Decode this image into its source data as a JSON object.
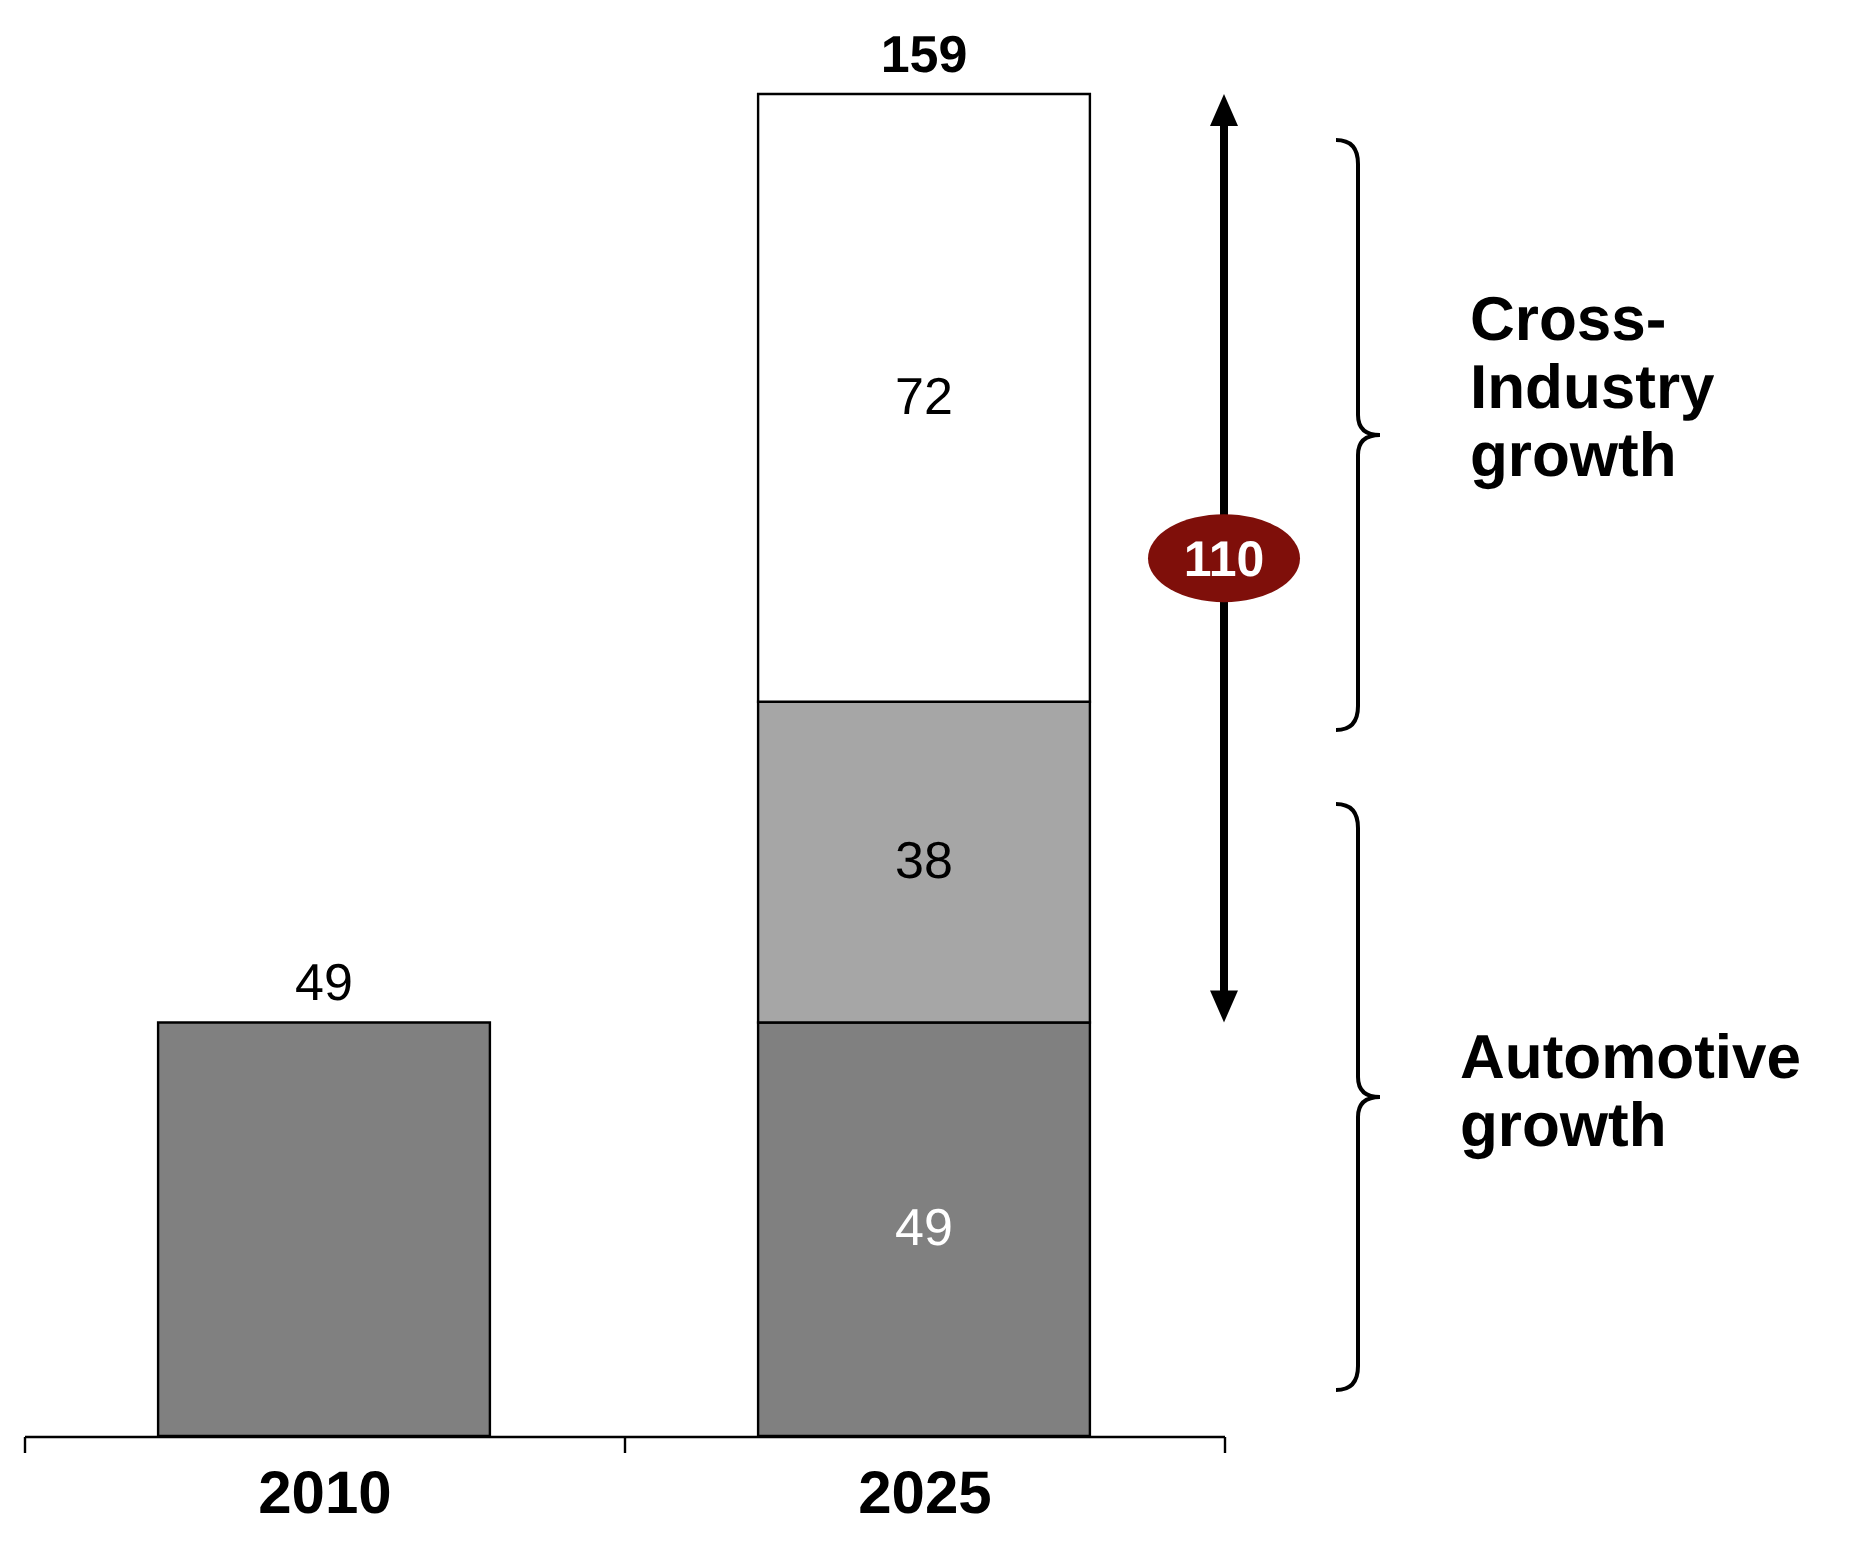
{
  "chart_data": {
    "type": "bar",
    "stacked": true,
    "categories": [
      "2010",
      "2025"
    ],
    "series": [
      {
        "color": "#808080",
        "values": [
          49,
          49
        ],
        "value_labels": [
          null,
          "49"
        ]
      },
      {
        "color": "#a6a6a6",
        "values": [
          null,
          38
        ],
        "value_labels": [
          null,
          "38"
        ]
      },
      {
        "color": "#ffffff",
        "values": [
          null,
          72
        ],
        "value_labels": [
          null,
          "72"
        ]
      }
    ],
    "totals": [
      "49",
      "159"
    ],
    "ylim": [
      0,
      159
    ],
    "tick_labels": "x",
    "legend": false,
    "annotations": [
      "110",
      "Cross-Industry growth",
      "Automotive growth"
    ]
  }
}
